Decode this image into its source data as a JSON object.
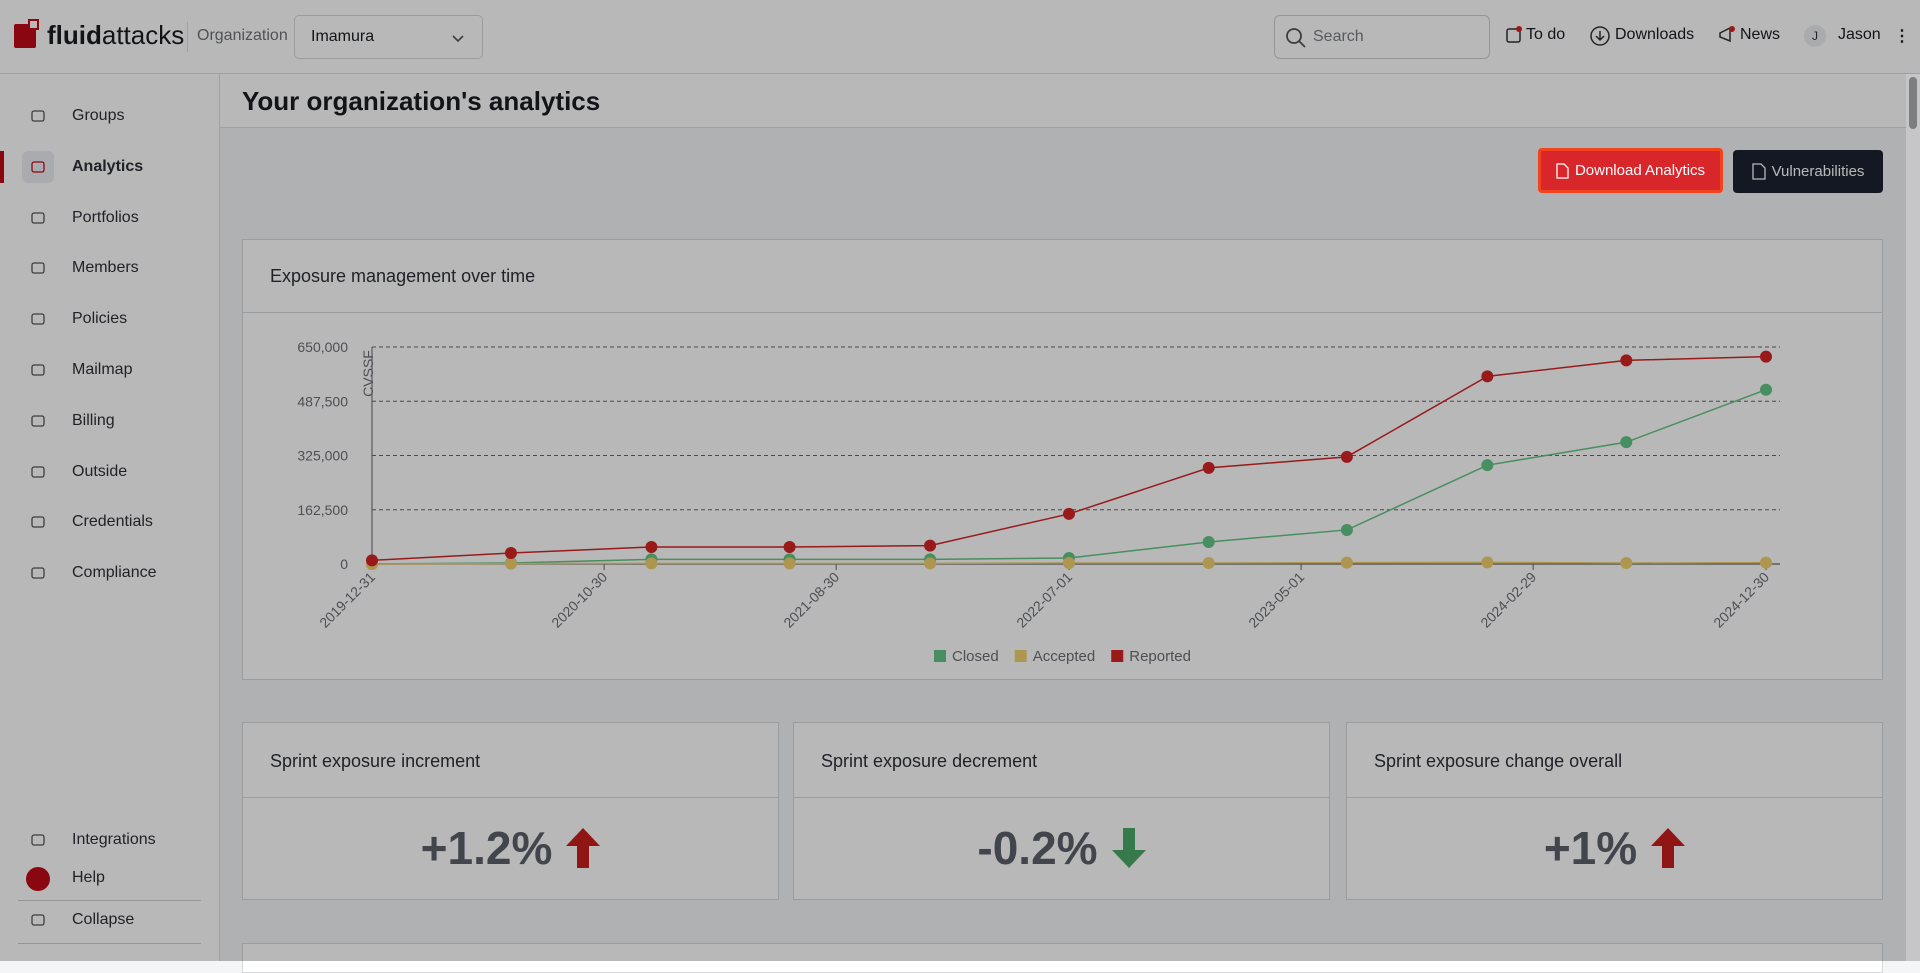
{
  "header": {
    "logo_bold": "fluid",
    "logo_rest": "attacks",
    "org_label": "Organization",
    "org_name": "Imamura",
    "search_placeholder": "Search",
    "todo": "To do",
    "downloads": "Downloads",
    "news": "News",
    "avatar": "J",
    "user": "Jason"
  },
  "sidebar": {
    "items": [
      "Groups",
      "Analytics",
      "Portfolios",
      "Members",
      "Policies",
      "Mailmap",
      "Billing",
      "Outside",
      "Credentials",
      "Compliance"
    ],
    "active": 1,
    "bottom": [
      "Integrations",
      "Help",
      "Collapse"
    ]
  },
  "page": {
    "title": "Your organization's analytics",
    "buttons": [
      "Download Analytics",
      "Vulnerabilities"
    ]
  },
  "chart_data": {
    "type": "line",
    "title": "Exposure management over time",
    "ylabel": "CVSSF",
    "x": [
      "2019-12-31",
      "2020-06-30",
      "2020-12-31",
      "2021-06-30",
      "2021-12-31",
      "2022-07-01",
      "2022-12-31",
      "2023-06-30",
      "2023-12-31",
      "2024-06-30",
      "2024-12-30"
    ],
    "xlim": [
      "2019-12-31",
      "2024-12-30"
    ],
    "xticks": [
      "2019-12-31",
      "2020-10-30",
      "2021-08-30",
      "2022-07-01",
      "2023-05-01",
      "2024-02-29",
      "2024-12-30"
    ],
    "ylim": [
      0,
      650000
    ],
    "yticks": [
      0,
      {
        "value": 162500,
        "label": "162,500"
      },
      {
        "value": 325000,
        "label": "325,000"
      },
      {
        "value": 487500,
        "label": "487,500"
      },
      {
        "value": 650000,
        "label": "650,000"
      }
    ],
    "grid": true,
    "series": [
      {
        "name": "Closed",
        "color": "#63c585",
        "values": [
          0,
          3000,
          14000,
          14000,
          14000,
          18000,
          66000,
          102000,
          296000,
          365000,
          522000
        ]
      },
      {
        "name": "Accepted",
        "color": "#f2cf70",
        "values": [
          0,
          1000,
          2000,
          2000,
          2000,
          3000,
          3000,
          4000,
          5000,
          3000,
          4000
        ]
      },
      {
        "name": "Reported",
        "color": "#d42424",
        "values": [
          11000,
          33000,
          51000,
          51000,
          55000,
          150000,
          288000,
          321000,
          562000,
          610000,
          621000
        ]
      }
    ]
  },
  "cards": [
    {
      "title": "Sprint exposure increment",
      "value": "+1.2%",
      "trend": "up"
    },
    {
      "title": "Sprint exposure decrement",
      "value": "-0.2%",
      "trend": "down"
    },
    {
      "title": "Sprint exposure change overall",
      "value": "+1%",
      "trend": "up"
    }
  ]
}
